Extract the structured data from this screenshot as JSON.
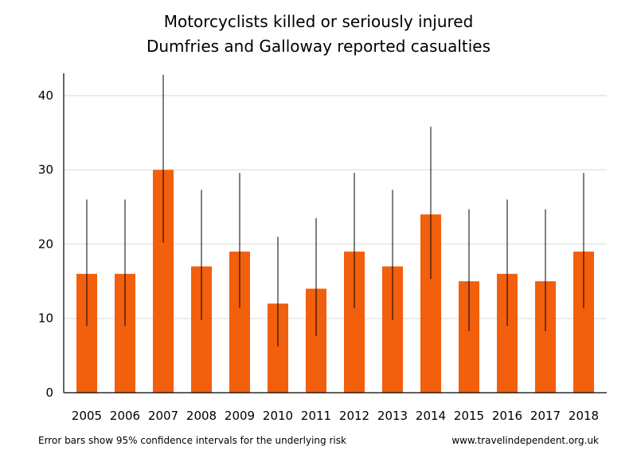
{
  "title_line1": "Motorcyclists killed or seriously injured",
  "title_line2": "Dumfries and Galloway reported casualties",
  "footnote_left": "Error bars show 95% confidence intervals for the underlying risk",
  "footnote_right": "www.travelindependent.org.uk",
  "colors": {
    "bar": "#f25f0d",
    "gridline": "#e6e6e6",
    "axis": "#000000",
    "errorbar": "#000000"
  },
  "chart_data": {
    "type": "bar",
    "title": "Motorcyclists killed or seriously injured / Dumfries and Galloway reported casualties",
    "categories": [
      "2005",
      "2006",
      "2007",
      "2008",
      "2009",
      "2010",
      "2011",
      "2012",
      "2013",
      "2014",
      "2015",
      "2016",
      "2017",
      "2018"
    ],
    "values": [
      16,
      16,
      30,
      17,
      19,
      12,
      14,
      19,
      17,
      24,
      15,
      16,
      15,
      19
    ],
    "error_low": [
      9,
      9,
      20.2,
      9.8,
      11.4,
      6.2,
      7.6,
      11.4,
      9.8,
      15.3,
      8.3,
      9,
      8.3,
      11.4
    ],
    "error_high": [
      26,
      26,
      42.8,
      27.3,
      29.6,
      21,
      23.5,
      29.6,
      27.3,
      35.8,
      24.7,
      26,
      24.7,
      29.6
    ],
    "ylim": [
      0,
      43
    ],
    "yticks": [
      0,
      10,
      20,
      30,
      40
    ],
    "xlabel": "",
    "ylabel": "",
    "grid": true
  }
}
